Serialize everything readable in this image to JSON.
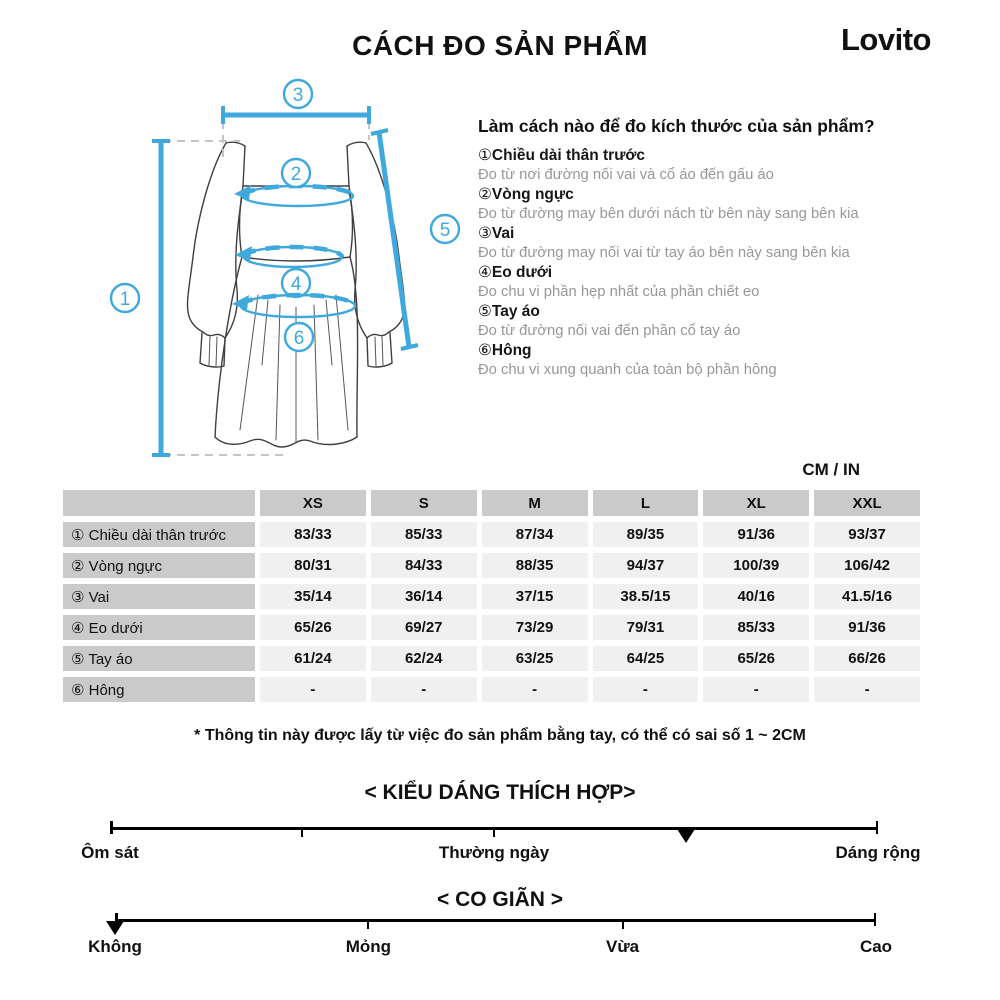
{
  "page": {
    "title": "CÁCH ĐO SẢN PHẨM",
    "brand": "Lovito"
  },
  "diagram": {
    "markers": [
      "1",
      "2",
      "3",
      "4",
      "5",
      "6"
    ]
  },
  "instructions": {
    "heading": "Làm cách nào để đo kích thước của sản phẩm?",
    "items": [
      {
        "num": "①",
        "label": "Chiều dài thân trước",
        "desc": "Đo từ nơi đường nối vai và cổ áo đến gấu áo"
      },
      {
        "num": "②",
        "label": "Vòng ngực",
        "desc": "Đo từ đường may bên dưới nách từ bên này sang bên kia"
      },
      {
        "num": "③",
        "label": "Vai",
        "desc": "Đo từ đường may nối vai từ tay áo bên này sang bên kia"
      },
      {
        "num": "④",
        "label": "Eo dưới",
        "desc": "Đo chu vi phần hẹp nhất của phần chiết eo"
      },
      {
        "num": "⑤",
        "label": "Tay áo",
        "desc": "Đo từ đường nối vai đến phần cổ tay áo"
      },
      {
        "num": "⑥",
        "label": "Hông",
        "desc": "Đo chu vi xung quanh của toàn bộ phần hông"
      }
    ]
  },
  "size_table": {
    "unit": "CM / IN",
    "columns": [
      "XS",
      "S",
      "M",
      "L",
      "XL",
      "XXL"
    ],
    "rows": [
      {
        "label": "① Chiều dài thân trước",
        "values": [
          "83/33",
          "85/33",
          "87/34",
          "89/35",
          "91/36",
          "93/37"
        ]
      },
      {
        "label": "② Vòng ngực",
        "values": [
          "80/31",
          "84/33",
          "88/35",
          "94/37",
          "100/39",
          "106/42"
        ]
      },
      {
        "label": "③ Vai",
        "values": [
          "35/14",
          "36/14",
          "37/15",
          "38.5/15",
          "40/16",
          "41.5/16"
        ]
      },
      {
        "label": "④ Eo dưới",
        "values": [
          "65/26",
          "69/27",
          "73/29",
          "79/31",
          "85/33",
          "91/36"
        ]
      },
      {
        "label": "⑤ Tay áo",
        "values": [
          "61/24",
          "62/24",
          "63/25",
          "64/25",
          "65/26",
          "66/26"
        ]
      },
      {
        "label": "⑥ Hông",
        "values": [
          "-",
          "-",
          "-",
          "-",
          "-",
          "-"
        ]
      }
    ]
  },
  "footnote": "* Thông tin này được lấy từ việc đo sản phẩm bằng tay, có thể có sai số 1 ~ 2CM",
  "sliders": {
    "fit": {
      "title": "< KIỂU DÁNG THÍCH HỢP>",
      "labels": [
        "Ôm sát",
        "Thường ngày",
        "Dáng rộng"
      ],
      "label_positions_percent": [
        0,
        50,
        100
      ],
      "tick_positions_percent": [
        25,
        50,
        75
      ],
      "marker_percent": 75
    },
    "stretch": {
      "title": "< CO GIÃN >",
      "labels": [
        "Không",
        "Mỏng",
        "Vừa",
        "Cao"
      ],
      "label_positions_percent": [
        0,
        33.3,
        66.7,
        100
      ],
      "tick_positions_percent": [
        33.3,
        66.7
      ],
      "marker_percent": 0
    }
  },
  "colors": {
    "accent_blue": "#3FA9DE",
    "table_header_bg": "#cacaca",
    "table_cell_bg": "#f0f0f0",
    "marker_black": "#000000"
  }
}
